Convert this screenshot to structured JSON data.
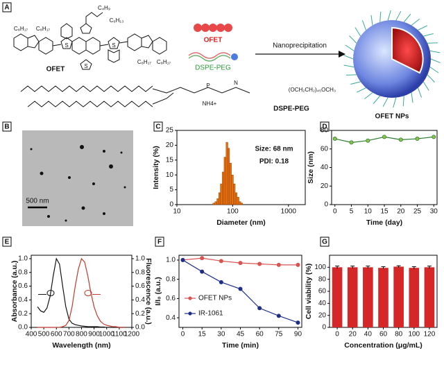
{
  "scheme": {
    "label": "A",
    "ofet_name": "OFET",
    "dspe_name": "DSPE-PEG",
    "legend_ofet": "OFET",
    "legend_dspe": "DSPE-PEG",
    "arrow_text": "Nanoprecipitation",
    "product": "OFET NPs",
    "side_chains": [
      "C₈H₁₇",
      "C₈H₁₇",
      "C₈H₁₇",
      "C₈H₁₇",
      "C₄H₉",
      "C₆H₁₃"
    ],
    "peg": "(OCH₂CH₂)₄₅OCH₃",
    "ammonium": "NH4+"
  },
  "tem": {
    "label": "B",
    "scale_bar": "500 nm"
  },
  "chart_data": [
    {
      "type": "histogram",
      "panel": "C",
      "xlabel": "Diameter (nm)",
      "ylabel": "Intensity (%)",
      "annotations": [
        "Size: 68 nm",
        "PDI: 0.18"
      ],
      "bins": [
        44,
        48,
        52,
        56,
        60,
        65,
        70,
        76,
        82,
        88,
        95,
        103,
        111,
        120,
        130,
        140,
        151
      ],
      "values": [
        0.5,
        1,
        2,
        4,
        7,
        11,
        16,
        21,
        19,
        14,
        10,
        7,
        4,
        2.5,
        1,
        0.5
      ],
      "color": "#e8700a",
      "log_x": true,
      "xlim": [
        10,
        2000
      ],
      "xticks": [
        10,
        100,
        1000
      ],
      "ylim": [
        0,
        25
      ],
      "yticks": [
        0,
        5,
        10,
        15,
        20,
        25
      ]
    },
    {
      "type": "line",
      "panel": "D",
      "xlabel": "Time (day)",
      "ylabel": "Size (nm)",
      "markers": true,
      "x": [
        0,
        5,
        10,
        15,
        20,
        25,
        30
      ],
      "series": [
        {
          "color": "#2e7d32",
          "values": [
            71,
            67,
            69,
            73,
            70,
            71,
            73
          ]
        }
      ],
      "xlim": [
        -1,
        31
      ],
      "xticks": [
        0,
        5,
        10,
        15,
        20,
        25,
        30
      ],
      "ylim": [
        0,
        80
      ],
      "yticks": [
        0,
        20,
        40,
        60,
        80
      ]
    },
    {
      "type": "line",
      "panel": "E",
      "xlabel": "Wavelength (nm)",
      "ylabel": "Absorbance (a.u.)",
      "y2label": "Fluorescence (a.u.)",
      "x": [
        450,
        475,
        500,
        525,
        550,
        575,
        600,
        625,
        650,
        675,
        700,
        725,
        750,
        775,
        800,
        825,
        850,
        875,
        900,
        925,
        950,
        975,
        1000,
        1025,
        1050,
        1075,
        1100,
        1125,
        1150
      ],
      "series": [
        {
          "color": "#111111",
          "values": [
            0.3,
            0.24,
            0.22,
            0.28,
            0.45,
            0.75,
            1.0,
            0.92,
            0.6,
            0.3,
            0.12,
            0.06,
            0.04,
            0.03,
            0.02,
            0.015,
            0.01,
            0.01,
            0.01,
            0.01,
            0.005,
            0.005,
            0,
            0,
            0,
            0,
            0,
            0,
            0
          ]
        },
        {
          "color": "#c0392b",
          "axis": "y2",
          "values": [
            0,
            0,
            0,
            0,
            0,
            0,
            0,
            0,
            0.01,
            0.03,
            0.1,
            0.3,
            0.6,
            0.85,
            1.0,
            0.95,
            0.75,
            0.5,
            0.3,
            0.17,
            0.09,
            0.05,
            0.03,
            0.02,
            0.01,
            0.01,
            0,
            0,
            0
          ]
        }
      ],
      "xlim": [
        400,
        1200
      ],
      "xticks": [
        400,
        500,
        600,
        700,
        800,
        900,
        1000,
        1100,
        1200
      ],
      "ylim": [
        0,
        1.05
      ],
      "yticks": [
        {
          "value": 0,
          "label": "0.0"
        },
        0.2,
        0.4,
        0.6,
        0.8,
        {
          "value": 1,
          "label": "1.0"
        }
      ],
      "y2lim": [
        0,
        1.05
      ],
      "y2ticks": [
        {
          "value": 0,
          "label": "0.0"
        },
        0.2,
        0.4,
        0.6,
        0.8,
        {
          "value": 1,
          "label": "1.0"
        }
      ]
    },
    {
      "type": "line",
      "panel": "F",
      "xlabel": "Time (min)",
      "ylabel": "I/I₀ (a.u.)",
      "markers": true,
      "legend": "center left",
      "x": [
        0,
        15,
        30,
        45,
        60,
        75,
        90
      ],
      "series": [
        {
          "name": "OFET NPs",
          "color": "#d9534f",
          "values": [
            1.0,
            1.02,
            0.99,
            0.97,
            0.96,
            0.95,
            0.95
          ]
        },
        {
          "name": "IR-1061",
          "color": "#1f2f86",
          "values": [
            1.0,
            0.88,
            0.77,
            0.7,
            0.5,
            0.42,
            0.35
          ]
        }
      ],
      "xlim": [
        -3,
        93
      ],
      "xticks": [
        0,
        15,
        30,
        45,
        60,
        75,
        90
      ],
      "ylim": [
        0.3,
        1.05
      ],
      "yticks": [
        0.4,
        0.6,
        0.8,
        {
          "value": 1,
          "label": "1.0"
        }
      ]
    },
    {
      "type": "bar",
      "panel": "G",
      "xlabel": "Concentration (μg/mL)",
      "ylabel": "Cell viability (%)",
      "categories": [
        "0",
        "20",
        "40",
        "60",
        "80",
        "100",
        "120"
      ],
      "values": [
        100,
        100,
        100,
        99,
        101,
        99,
        100
      ],
      "errors": [
        2,
        2,
        2,
        2,
        1.5,
        2,
        2
      ],
      "color": "#d62728",
      "ylim": [
        0,
        120
      ],
      "yticks": [
        0,
        20,
        40,
        60,
        80,
        100
      ]
    }
  ]
}
